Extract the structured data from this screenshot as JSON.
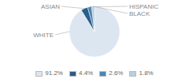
{
  "chart_data": {
    "type": "pie",
    "categories": [
      "WHITE",
      "ASIAN",
      "HISPANIC",
      "BLACK"
    ],
    "values": [
      91.2,
      4.4,
      2.6,
      1.8
    ],
    "value_labels": [
      "91.2%",
      "4.4%",
      "2.6%",
      "1.8%"
    ],
    "colors": [
      "#dce6f1",
      "#2b5c8a",
      "#4a86b8",
      "#b8cfe0"
    ],
    "legend": "bottom"
  }
}
